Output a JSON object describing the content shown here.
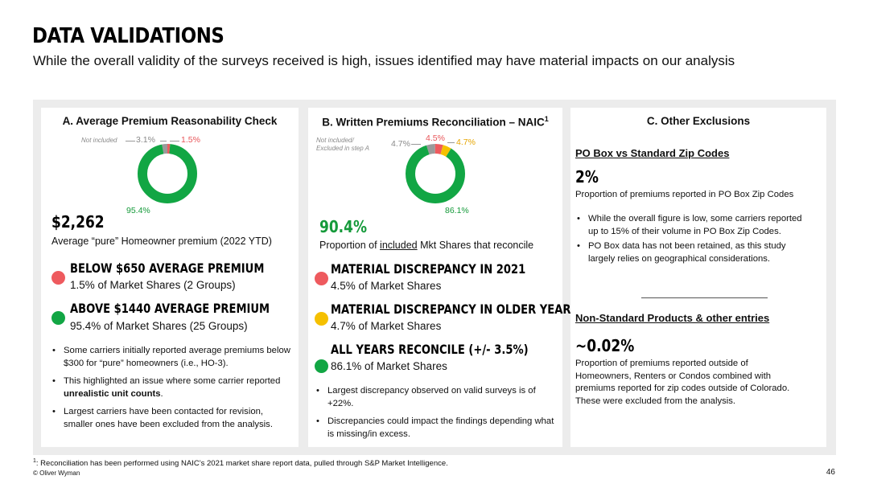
{
  "header": {
    "title": "DATA VALIDATIONS",
    "subtitle": "While the overall validity of the surveys received is high, issues identified may have material impacts on our analysis"
  },
  "colors": {
    "red": "#ee5a5e",
    "orange": "#f5c000",
    "green": "#12a644",
    "grey": "#9a9a9a"
  },
  "section_a": {
    "title": "A. Average Premium Reasonability Check",
    "chart": {
      "not_included_label": "Not included",
      "segments": [
        {
          "name": "Not included",
          "value": 3.1,
          "label": "3.1%",
          "color": "#9a9a9a"
        },
        {
          "name": "Below $650",
          "value": 1.5,
          "label": "1.5%",
          "color": "#ee5a5e"
        },
        {
          "name": "Above $1440",
          "value": 95.4,
          "label": "95.4%",
          "color": "#12a644"
        }
      ]
    },
    "big_value": "$2,262",
    "big_desc": "Average “pure” Homeowner premium (2022 YTD)",
    "items": [
      {
        "heading": "BELOW $650 AVERAGE PREMIUM",
        "sub": "1.5% of Market Shares (2 Groups)"
      },
      {
        "heading": "ABOVE $1440 AVERAGE PREMIUM",
        "sub": "95.4% of Market Shares (25 Groups)"
      }
    ],
    "bullet1": "Some carriers initially reported average premiums below $300 for “pure” homeowners (i.e., HO-3).",
    "bullet2_pre": "This highlighted an issue where some carrier reported ",
    "bullet2_bold": "unrealistic unit counts",
    "bullet2_post": ".",
    "bullet3": "Largest carriers have been contacted for revision, smaller ones have been excluded from the analysis."
  },
  "section_b": {
    "title": "B. Written Premiums Reconciliation – NAIC",
    "title_sup": "1",
    "chart": {
      "not_included_label_1": "Not included/",
      "not_included_label_2": "Excluded in step A",
      "segments": [
        {
          "name": "Not included",
          "value": 4.7,
          "label": "4.7%",
          "color": "#9a9a9a"
        },
        {
          "name": "Discrepancy 2021",
          "value": 4.5,
          "label": "4.5%",
          "color": "#ee5a5e"
        },
        {
          "name": "Discrepancy older years",
          "value": 4.7,
          "label": "4.7%",
          "color": "#f5c000"
        },
        {
          "name": "All years reconcile",
          "value": 86.1,
          "label": "86.1%",
          "color": "#12a644"
        }
      ]
    },
    "big_value": "90.4%",
    "big_desc_pre": "Proportion of ",
    "big_desc_u": "included",
    "big_desc_post": " Mkt Shares that reconcile",
    "items": [
      {
        "heading": "MATERIAL DISCREPANCY IN 2021",
        "sub": "4.5% of Market Shares"
      },
      {
        "heading": "MATERIAL DISCREPANCY IN OLDER YEARS",
        "sub": "4.7% of Market Shares"
      },
      {
        "heading": "ALL YEARS RECONCILE (+/- 3.5%)",
        "sub": "86.1% of Market Shares"
      }
    ],
    "bullets": [
      "Largest discrepancy observed on valid surveys is of +22%.",
      "Discrepancies could impact the findings depending what is missing/in excess."
    ]
  },
  "section_c": {
    "title": "C. Other Exclusions",
    "po_heading": "PO Box vs Standard Zip Codes",
    "po_value": "2%",
    "po_desc": "Proportion of premiums reported in PO Box Zip Codes",
    "po_bullets": [
      "While the overall figure is low, some carriers reported up to 15% of their volume in PO Box Zip Codes.",
      "PO Box data has not been retained, as this study largely relies on geographical considerations."
    ],
    "ns_heading": "Non-Standard Products & other entries",
    "ns_value": "~0.02%",
    "ns_desc": "Proportion of premiums reported outside of Homeowners, Renters or Condos combined with premiums reported for zip codes outside of Colorado. These were excluded from the analysis."
  },
  "footer": {
    "footnote_sup": "1",
    "footnote": ": Reconciliation has been performed using NAIC’s 2021 market share report data, pulled through S&P Market Intelligence.",
    "copyright": "© Oliver Wyman",
    "page": "46"
  }
}
